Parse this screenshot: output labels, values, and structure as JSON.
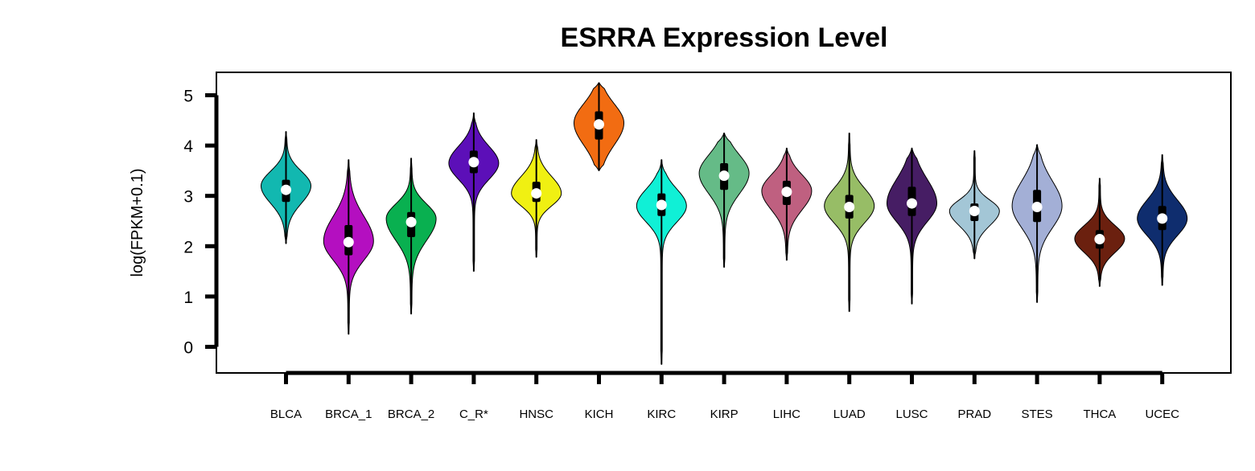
{
  "chart_data": {
    "type": "violin",
    "title": "ESRRA Expression Level",
    "xlabel": "",
    "ylabel": "log(FPKM+0.1)",
    "ylim": [
      -0.55,
      5.45
    ],
    "yticks": [
      0,
      1,
      2,
      3,
      4,
      5
    ],
    "grid": false,
    "legend": "none",
    "series": [
      {
        "category": "BLCA",
        "color": "#12b8b0",
        "min": 2.05,
        "q1": 2.88,
        "median": 3.12,
        "q3": 3.32,
        "max": 4.28,
        "whisker_low": 2.05,
        "whisker_high": 4.28,
        "mode": 3.2
      },
      {
        "category": "BRCA_1",
        "color": "#b40fc0",
        "min": 0.25,
        "q1": 1.82,
        "median": 2.08,
        "q3": 2.42,
        "max": 3.72,
        "whisker_low": 0.25,
        "whisker_high": 3.72,
        "mode": 2.1
      },
      {
        "category": "BRCA_2",
        "color": "#09b050",
        "min": 0.65,
        "q1": 2.18,
        "median": 2.48,
        "q3": 2.68,
        "max": 3.75,
        "whisker_low": 0.65,
        "whisker_high": 3.75,
        "mode": 2.55
      },
      {
        "category": "C_R*",
        "color": "#5c0fb8",
        "min": 1.5,
        "q1": 3.45,
        "median": 3.67,
        "q3": 3.9,
        "max": 4.65,
        "whisker_low": 1.5,
        "whisker_high": 4.65,
        "mode": 3.65
      },
      {
        "category": "HNSC",
        "color": "#f0f012",
        "min": 1.78,
        "q1": 2.88,
        "median": 3.05,
        "q3": 3.28,
        "max": 4.12,
        "whisker_low": 1.78,
        "whisker_high": 4.12,
        "mode": 3.05
      },
      {
        "category": "KICH",
        "color": "#f26c12",
        "min": 3.5,
        "q1": 4.12,
        "median": 4.42,
        "q3": 4.68,
        "max": 5.25,
        "whisker_low": 3.5,
        "whisker_high": 5.25,
        "mode": 4.45
      },
      {
        "category": "KIRC",
        "color": "#10f0d6",
        "min": -0.35,
        "q1": 2.6,
        "median": 2.82,
        "q3": 3.05,
        "max": 3.72,
        "whisker_low": -0.35,
        "whisker_high": 3.72,
        "mode": 2.8
      },
      {
        "category": "KIRP",
        "color": "#65bb87",
        "min": 1.58,
        "q1": 3.12,
        "median": 3.4,
        "q3": 3.65,
        "max": 4.25,
        "whisker_low": 1.58,
        "whisker_high": 4.25,
        "mode": 3.45
      },
      {
        "category": "LIHC",
        "color": "#bf6080",
        "min": 1.72,
        "q1": 2.82,
        "median": 3.08,
        "q3": 3.3,
        "max": 3.95,
        "whisker_low": 1.72,
        "whisker_high": 3.95,
        "mode": 3.1
      },
      {
        "category": "LUAD",
        "color": "#97bd66",
        "min": 0.7,
        "q1": 2.55,
        "median": 2.78,
        "q3": 3.02,
        "max": 4.25,
        "whisker_low": 0.7,
        "whisker_high": 4.25,
        "mode": 2.8
      },
      {
        "category": "LUSC",
        "color": "#461d64",
        "min": 0.85,
        "q1": 2.6,
        "median": 2.85,
        "q3": 3.18,
        "max": 3.95,
        "whisker_low": 0.85,
        "whisker_high": 3.95,
        "mode": 2.85
      },
      {
        "category": "PRAD",
        "color": "#a3c6d6",
        "min": 1.75,
        "q1": 2.5,
        "median": 2.7,
        "q3": 2.85,
        "max": 3.9,
        "whisker_low": 1.75,
        "whisker_high": 3.9,
        "mode": 2.7
      },
      {
        "category": "STES",
        "color": "#a3afd6",
        "min": 0.88,
        "q1": 2.48,
        "median": 2.78,
        "q3": 3.12,
        "max": 4.02,
        "whisker_low": 0.88,
        "whisker_high": 4.02,
        "mode": 2.8
      },
      {
        "category": "THCA",
        "color": "#6b200f",
        "min": 1.2,
        "q1": 1.95,
        "median": 2.14,
        "q3": 2.32,
        "max": 3.35,
        "whisker_low": 1.2,
        "whisker_high": 3.35,
        "mode": 2.15
      },
      {
        "category": "UCEC",
        "color": "#0f2d6e",
        "min": 1.22,
        "q1": 2.32,
        "median": 2.55,
        "q3": 2.8,
        "max": 3.82,
        "whisker_low": 1.22,
        "whisker_high": 3.82,
        "mode": 2.55
      }
    ]
  }
}
